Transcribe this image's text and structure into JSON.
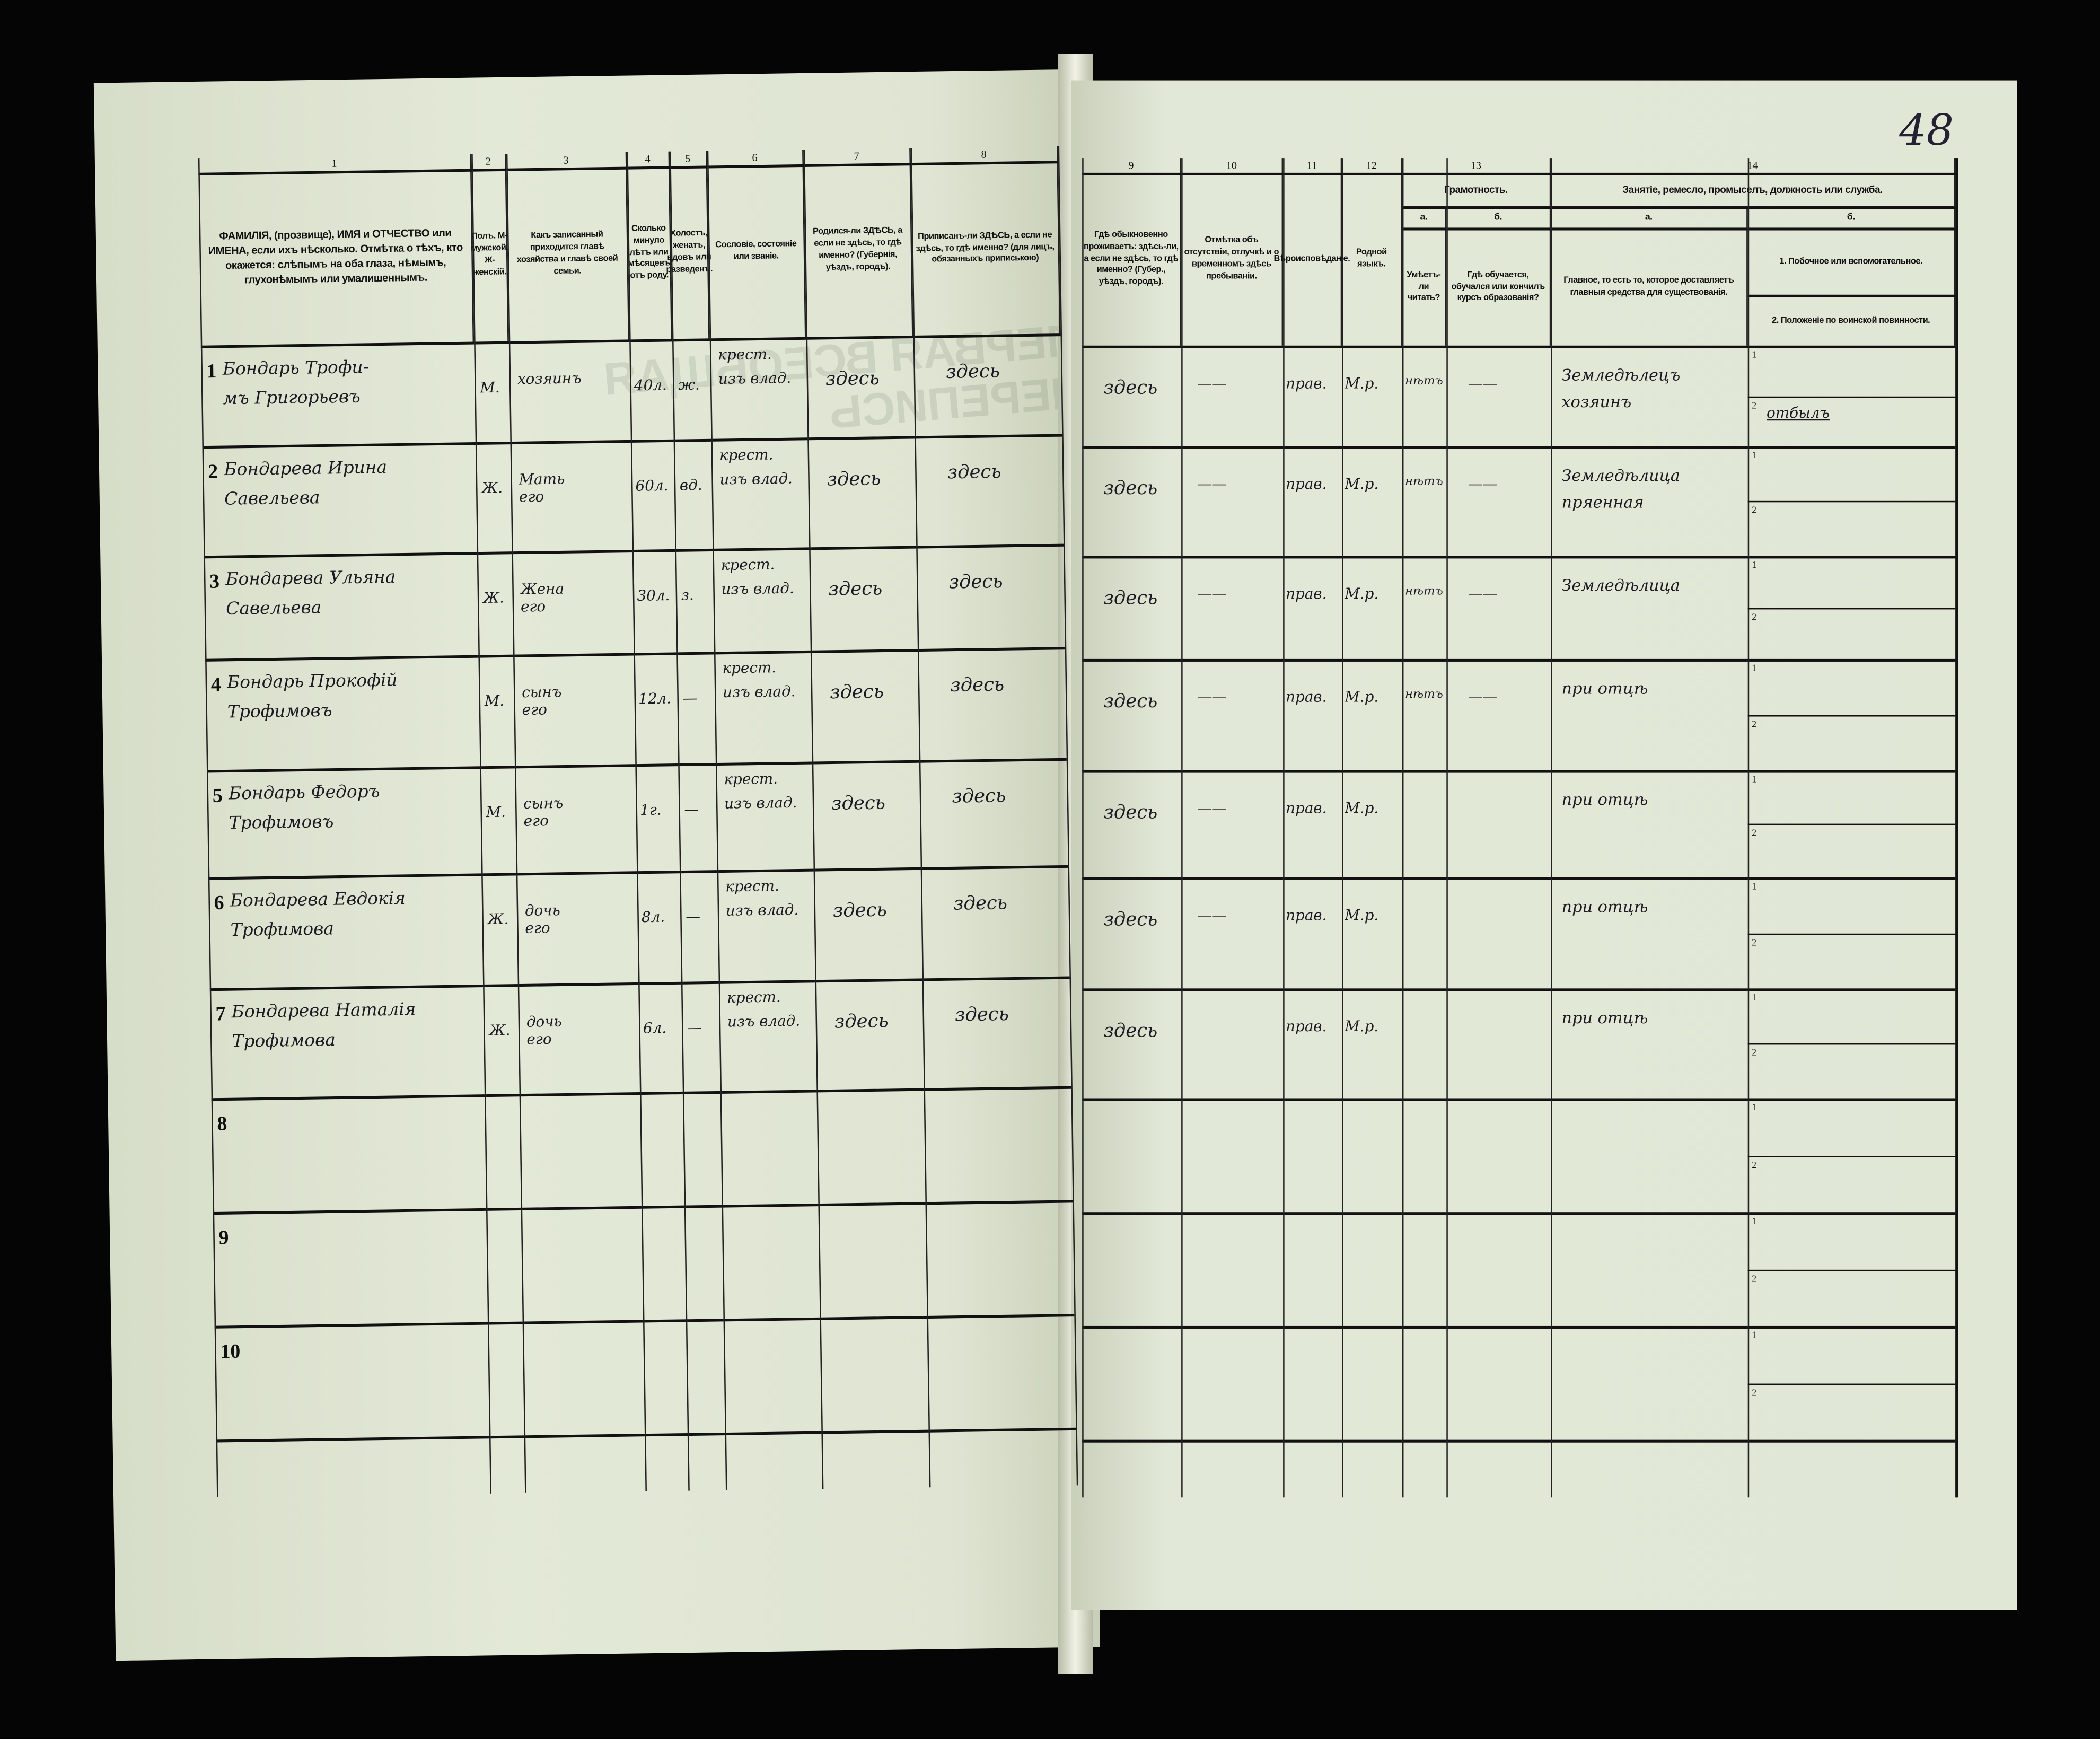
{
  "page_number": "48",
  "left_headers": [
    {
      "num": "1",
      "text": "ФАМИЛІЯ, (прозвище), ИМЯ и ОТЧЕСТВО или ИМЕНА, если ихъ нѣсколько. Отмѣтка о тѣхъ, кто окажется: слѣпымъ на оба глаза, нѣмымъ, глухонѣмымъ или умалишеннымъ."
    },
    {
      "num": "2",
      "text": "Полъ. М-мужской. Ж-женскій."
    },
    {
      "num": "3",
      "text": "Какъ записанный приходится главѣ хозяйства и главѣ своей семьи."
    },
    {
      "num": "4",
      "text": "Сколько минуло лѣтъ или мѣсяцевъ отъ роду."
    },
    {
      "num": "5",
      "text": "Холостъ, женатъ, вдовъ или разведенъ."
    },
    {
      "num": "6",
      "text": "Сословіе, состояніе или званіе."
    },
    {
      "num": "7",
      "text": "Родился-ли ЗДѢСЬ, а если не здѣсь, то гдѣ именно? (Губернія, уѣздъ, городъ)."
    },
    {
      "num": "8",
      "text": "Приписанъ-ли ЗДѢСЬ, а если не здѣсь, то гдѣ именно? (для лицъ, обязанныхъ припиською)"
    }
  ],
  "right_headers": [
    {
      "num": "9",
      "text": "Гдѣ обыкновенно проживаетъ: здѣсь-ли, а если не здѣсь, то гдѣ именно? (Губер., уѣздъ, городъ)."
    },
    {
      "num": "10",
      "text": "Отмѣтка объ отсутствіи, отлучкѣ и о временномъ здѣсь пребываніи."
    },
    {
      "num": "11",
      "text": "Вѣроисповѣданіе."
    },
    {
      "num": "12",
      "text": "Родной языкъ."
    },
    {
      "num": "13",
      "group": "Грамотность.",
      "a_label": "а.",
      "a_text": "Умѣетъ-ли читать?",
      "b_label": "б.",
      "b_text": "Гдѣ обучается, обучался или кончилъ курсъ образованія?"
    },
    {
      "num": "14",
      "group": "Занятіе, ремесло, промыселъ, должность или служба.",
      "a_label": "а.",
      "a_text": "Главное, то есть то, которое доставляетъ главныя средства для существованія.",
      "b_label": "б.",
      "b1": "1. Побочное или вспомогательное.",
      "b2": "2. Положеніе по воинской повинности."
    }
  ],
  "rows": [
    {
      "n": "1",
      "name": [
        "Бондарь Трофи-",
        "мъ Григорьевъ"
      ],
      "sex": "М.",
      "relation": [
        "хозяинъ"
      ],
      "age": "40л.",
      "marital": "ж.",
      "estate": [
        "крест.",
        "изъ влад."
      ],
      "born": "здесь",
      "registered": "здесь",
      "resides": "здесь",
      "absence": "——",
      "religion": "прав.",
      "language": "М.р.",
      "literate": "нѣтъ",
      "education": "——",
      "occupation": [
        "Земледѣлецъ",
        "хозяинъ"
      ],
      "secondary": "",
      "military": "отбылъ"
    },
    {
      "n": "2",
      "name": [
        "Бондарева Ирина",
        "Савельева"
      ],
      "sex": "Ж.",
      "relation": [
        "Мать",
        "его"
      ],
      "age": "60л.",
      "marital": "вд.",
      "estate": [
        "крест.",
        "изъ влад."
      ],
      "born": "здесь",
      "registered": "здесь",
      "resides": "здесь",
      "absence": "——",
      "religion": "прав.",
      "language": "М.р.",
      "literate": "нѣтъ",
      "education": "——",
      "occupation": [
        "Земледѣлица",
        "пряенная"
      ],
      "secondary": "",
      "military": ""
    },
    {
      "n": "3",
      "name": [
        "Бондарева Ульяна",
        "Савельева"
      ],
      "sex": "Ж.",
      "relation": [
        "Жена",
        "его"
      ],
      "age": "30л.",
      "marital": "з.",
      "estate": [
        "крест.",
        "изъ влад."
      ],
      "born": "здесь",
      "registered": "здесь",
      "resides": "здесь",
      "absence": "——",
      "religion": "прав.",
      "language": "М.р.",
      "literate": "нѣтъ",
      "education": "——",
      "occupation": [
        "Земледѣлица"
      ],
      "secondary": "",
      "military": ""
    },
    {
      "n": "4",
      "name": [
        "Бондарь Прокофій",
        "Трофимовъ"
      ],
      "sex": "М.",
      "relation": [
        "сынъ",
        "его"
      ],
      "age": "12л.",
      "marital": "—",
      "estate": [
        "крест.",
        "изъ влад."
      ],
      "born": "здесь",
      "registered": "здесь",
      "resides": "здесь",
      "absence": "——",
      "religion": "прав.",
      "language": "М.р.",
      "literate": "нѣтъ",
      "education": "——",
      "occupation": [
        "при отцѣ"
      ],
      "secondary": "",
      "military": ""
    },
    {
      "n": "5",
      "name": [
        "Бондарь Федоръ",
        "Трофимовъ"
      ],
      "sex": "М.",
      "relation": [
        "сынъ",
        "его"
      ],
      "age": "1г.",
      "marital": "—",
      "estate": [
        "крест.",
        "изъ влад."
      ],
      "born": "здесь",
      "registered": "здесь",
      "resides": "здесь",
      "absence": "——",
      "religion": "прав.",
      "language": "М.р.",
      "literate": "",
      "education": "",
      "occupation": [
        "при отцѣ"
      ],
      "secondary": "",
      "military": ""
    },
    {
      "n": "6",
      "name": [
        "Бондарева Евдокія",
        "Трофимова"
      ],
      "sex": "Ж.",
      "relation": [
        "дочь",
        "его"
      ],
      "age": "8л.",
      "marital": "—",
      "estate": [
        "крест.",
        "изъ влад."
      ],
      "born": "здесь",
      "registered": "здесь",
      "resides": "здесь",
      "absence": "——",
      "religion": "прав.",
      "language": "М.р.",
      "literate": "",
      "education": "",
      "occupation": [
        "при отцѣ"
      ],
      "secondary": "",
      "military": ""
    },
    {
      "n": "7",
      "name": [
        "Бондарева Наталія",
        "Трофимова"
      ],
      "sex": "Ж.",
      "relation": [
        "дочь",
        "его"
      ],
      "age": "6л.",
      "marital": "—",
      "estate": [
        "крест.",
        "изъ влад."
      ],
      "born": "здесь",
      "registered": "здесь",
      "resides": "здесь",
      "absence": "",
      "religion": "прав.",
      "language": "М.р.",
      "literate": "",
      "education": "",
      "occupation": [
        "при отцѣ"
      ],
      "secondary": "",
      "military": ""
    },
    {
      "n": "8"
    },
    {
      "n": "9"
    },
    {
      "n": "10"
    }
  ],
  "sub_labels": [
    "1",
    "2"
  ]
}
